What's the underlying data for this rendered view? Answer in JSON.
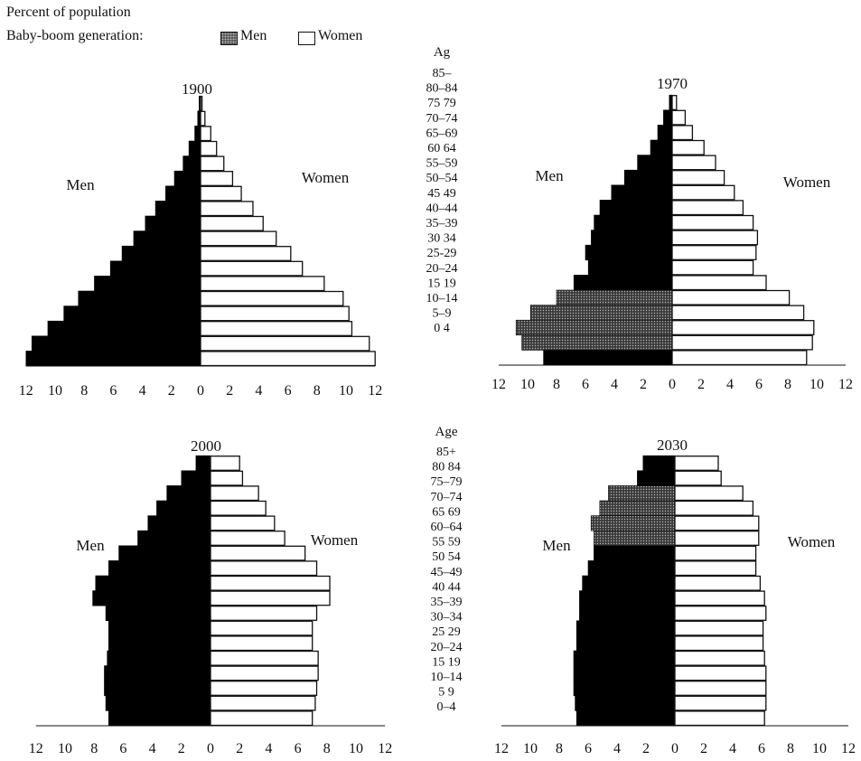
{
  "header": {
    "title": "Percent of population",
    "legend_label": "Baby-boom generation:",
    "legend_men": "Men",
    "legend_women": "Women"
  },
  "colors": {
    "men": "#000000",
    "women": "#ffffff",
    "baby_boom_men": "#3a3a3a",
    "outline": "#111111"
  },
  "chart_data": [
    {
      "type": "bar",
      "title": "1900",
      "men_label": "Men",
      "women_label": "Women",
      "age_axis_label": "",
      "age_groups": [],
      "categories": [
        "0-4",
        "5-9",
        "10-14",
        "15-19",
        "20-24",
        "25-29",
        "30-34",
        "35-39",
        "40-44",
        "45-49",
        "50-54",
        "55-59",
        "60-64",
        "65-69",
        "70-74",
        "75-79",
        "80-84",
        "85+"
      ],
      "x_ticks": [
        "12",
        "10",
        "8",
        "6",
        "4",
        "2",
        "0",
        "2",
        "4",
        "6",
        "8",
        "10",
        "12"
      ],
      "xlim": [
        -12,
        12
      ],
      "series": [
        {
          "name": "Men",
          "values": [
            12.0,
            11.6,
            10.5,
            9.4,
            8.4,
            7.3,
            6.2,
            5.4,
            4.6,
            3.8,
            3.1,
            2.4,
            1.8,
            1.2,
            0.8,
            0.4,
            0.2,
            0.1
          ]
        },
        {
          "name": "Women",
          "values": [
            12.0,
            11.6,
            10.4,
            10.2,
            9.8,
            8.5,
            7.0,
            6.2,
            5.2,
            4.3,
            3.6,
            2.8,
            2.2,
            1.6,
            1.1,
            0.7,
            0.3,
            0.1
          ]
        }
      ],
      "baby_boom_men": []
    },
    {
      "type": "bar",
      "title": "1970",
      "men_label": "Men",
      "women_label": "Women",
      "age_axis_label": "Ag",
      "age_groups": [
        "85–",
        "80–84",
        "75 79",
        "70–74",
        "65–69",
        "60 64",
        "55–59",
        "50–54",
        "45 49",
        "40–44",
        "35–39",
        "30 34",
        "25-29",
        "20–24",
        "15 19",
        "10–14",
        "5–9",
        "0 4"
      ],
      "categories": [
        "0-4",
        "5-9",
        "10-14",
        "15-19",
        "20-24",
        "25-29",
        "30-34",
        "35-39",
        "40-44",
        "45-49",
        "50-54",
        "55-59",
        "60-64",
        "65-69",
        "70-74",
        "75-79",
        "80-84",
        "85+"
      ],
      "x_ticks": [
        "12",
        "10",
        "8",
        "6",
        "4",
        "2",
        "0",
        "2",
        "4",
        "6",
        "8",
        "10",
        "12"
      ],
      "xlim": [
        -12,
        12
      ],
      "series": [
        {
          "name": "Men",
          "values": [
            8.9,
            10.4,
            10.8,
            9.8,
            8.0,
            6.8,
            5.8,
            6.0,
            5.6,
            5.4,
            5.0,
            4.2,
            3.3,
            2.4,
            1.5,
            1.0,
            0.6,
            0.2
          ]
        },
        {
          "name": "Women",
          "values": [
            9.3,
            9.7,
            9.8,
            9.1,
            8.1,
            6.5,
            5.6,
            5.8,
            5.9,
            5.6,
            4.9,
            4.3,
            3.6,
            3.0,
            2.2,
            1.4,
            0.9,
            0.3
          ]
        }
      ],
      "baby_boom_men": [
        "5-9",
        "10-14",
        "15-19",
        "20-24"
      ]
    },
    {
      "type": "bar",
      "title": "2000",
      "men_label": "Men",
      "women_label": "Women",
      "age_axis_label": "",
      "age_groups": [],
      "categories": [
        "0-4",
        "5-9",
        "10-14",
        "15-19",
        "20-24",
        "25-29",
        "30-34",
        "35-39",
        "40-44",
        "45-49",
        "50-54",
        "55-59",
        "60-64",
        "65-69",
        "70-74",
        "75-79",
        "80-84",
        "85+"
      ],
      "x_ticks": [
        "12",
        "10",
        "8",
        "6",
        "4",
        "2",
        "0",
        "2",
        "4",
        "6",
        "8",
        "10",
        "12"
      ],
      "xlim": [
        -12,
        12
      ],
      "series": [
        {
          "name": "Men",
          "values": [
            7.0,
            7.2,
            7.3,
            7.3,
            7.1,
            7.0,
            7.0,
            7.2,
            8.1,
            7.9,
            7.0,
            6.3,
            5.0,
            4.3,
            3.7,
            3.0,
            2.0,
            1.0
          ]
        },
        {
          "name": "Women",
          "values": [
            7.0,
            7.2,
            7.3,
            7.4,
            7.4,
            7.0,
            7.0,
            7.3,
            8.2,
            8.2,
            7.3,
            6.5,
            5.1,
            4.4,
            3.8,
            3.3,
            2.2,
            2.0
          ]
        }
      ],
      "baby_boom_men": []
    },
    {
      "type": "bar",
      "title": "2030",
      "men_label": "Men",
      "women_label": "Women",
      "age_axis_label": "Age",
      "age_groups": [
        "85+",
        "80 84",
        "75–79",
        "70–74",
        "65 69",
        "60–64",
        "55 59",
        "50 54",
        "45–49",
        "40 44",
        "35–39",
        "30–34",
        "25 29",
        "20–24",
        "15 19",
        "10–14",
        "5 9",
        "0–4"
      ],
      "categories": [
        "0-4",
        "5-9",
        "10-14",
        "15-19",
        "20-24",
        "25-29",
        "30-34",
        "35-39",
        "40-44",
        "45-49",
        "50-54",
        "55-59",
        "60-64",
        "65-69",
        "70-74",
        "75-79",
        "80-84",
        "85+"
      ],
      "x_ticks": [
        "12",
        "10",
        "8",
        "6",
        "4",
        "2",
        "0",
        "2",
        "4",
        "6",
        "8",
        "10",
        "12"
      ],
      "xlim": [
        -12,
        12
      ],
      "series": [
        {
          "name": "Men",
          "values": [
            6.8,
            6.9,
            7.0,
            7.0,
            7.0,
            6.8,
            6.8,
            6.6,
            6.6,
            6.4,
            6.0,
            5.6,
            5.6,
            5.8,
            5.2,
            4.6,
            2.6,
            2.2
          ]
        },
        {
          "name": "Women",
          "values": [
            6.2,
            6.3,
            6.3,
            6.3,
            6.2,
            6.1,
            6.1,
            6.3,
            6.2,
            5.9,
            5.6,
            5.6,
            5.8,
            5.8,
            5.4,
            4.7,
            3.2,
            3.0
          ]
        }
      ],
      "baby_boom_men": [
        "60-64",
        "65-69",
        "70-74",
        "75-79"
      ]
    }
  ]
}
